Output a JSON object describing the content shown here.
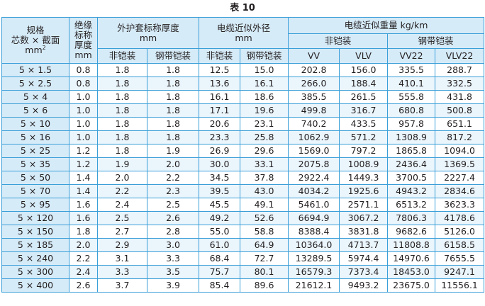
{
  "caption": "表 10",
  "headers": {
    "spec_line1": "规格",
    "spec_line2": "芯数 × 截面",
    "spec_line3": "mm",
    "spec_sup": "2",
    "insul_line1": "绝缘",
    "insul_line2": "标称",
    "insul_line3": "厚度",
    "insul_line4": "mm",
    "sheath_line1": "外护套标称厚度",
    "sheath_line2": "mm",
    "dia_line1": "电缆近似外径",
    "dia_line2": "mm",
    "weight": "电缆近似重量 kg/km",
    "non_armored": "非铠装",
    "steel_tape": "钢带铠装",
    "non_armored_w": "非铠装",
    "steel_tape_w": "钢带铠装",
    "vv": "VV",
    "vlv": "VLV",
    "vv22": "VV22",
    "vlv22": "VLV22"
  },
  "rows": [
    [
      "5 × 1.5",
      "0.8",
      "1.8",
      "1.8",
      "12.5",
      "15.0",
      "202.8",
      "156.0",
      "335.5",
      "288.7"
    ],
    [
      "5 × 2.5",
      "0.8",
      "1.8",
      "1.8",
      "13.6",
      "16.1",
      "266.0",
      "188.4",
      "410.1",
      "332.5"
    ],
    [
      "5 × 4",
      "1.0",
      "1.8",
      "1.8",
      "16.1",
      "18.6",
      "385.5",
      "261.5",
      "555.8",
      "431.8"
    ],
    [
      "5 × 6",
      "1.0",
      "1.8",
      "1.8",
      "17.1",
      "19.6",
      "499.8",
      "316.7",
      "680.8",
      "500.8"
    ],
    [
      "5 × 10",
      "1.0",
      "1.8",
      "1.8",
      "20.6",
      "23.1",
      "740.2",
      "433.5",
      "957.8",
      "651.1"
    ],
    [
      "5 × 16",
      "1.0",
      "1.8",
      "1.8",
      "23.3",
      "25.8",
      "1062.9",
      "571.2",
      "1308.9",
      "817.2"
    ],
    [
      "5 × 25",
      "1.2",
      "1.8",
      "1.9",
      "26.9",
      "29.6",
      "1569.0",
      "797.2",
      "1865.8",
      "1094.0"
    ],
    [
      "5 × 35",
      "1.2",
      "1.9",
      "2.0",
      "30.0",
      "33.1",
      "2075.8",
      "1008.9",
      "2436.4",
      "1369.5"
    ],
    [
      "5 × 50",
      "1.4",
      "2.0",
      "2.2",
      "34.5",
      "37.8",
      "2922.4",
      "1449.3",
      "3700.5",
      "2227.4"
    ],
    [
      "5 × 70",
      "1.4",
      "2.2",
      "2.3",
      "39.5",
      "43.0",
      "4034.2",
      "1925.6",
      "4943.2",
      "2834.6"
    ],
    [
      "5 × 95",
      "1.6",
      "2.4",
      "2.5",
      "45.5",
      "49.1",
      "5461.0",
      "2571.1",
      "6513.2",
      "3623.3"
    ],
    [
      "5 × 120",
      "1.6",
      "2.5",
      "2.6",
      "49.2",
      "52.6",
      "6694.9",
      "3067.2",
      "7806.3",
      "4178.6"
    ],
    [
      "5 × 150",
      "1.8",
      "2.7",
      "2.8",
      "55.0",
      "58.8",
      "8388.4",
      "3831.8",
      "9682.6",
      "5126.0"
    ],
    [
      "5 × 185",
      "2.0",
      "2.9",
      "3.0",
      "61.0",
      "64.9",
      "10364.0",
      "4713.7",
      "11808.8",
      "6158.5"
    ],
    [
      "5 × 240",
      "2.2",
      "3.1",
      "3.3",
      "68.4",
      "72.7",
      "13289.5",
      "5974.4",
      "14970.6",
      "7655.5"
    ],
    [
      "5 × 300",
      "2.4",
      "3.3",
      "3.5",
      "75.7",
      "80.1",
      "16579.3",
      "7373.4",
      "18453.0",
      "9247.1"
    ],
    [
      "5 × 400",
      "2.6",
      "3.7",
      "3.9",
      "85.4",
      "89.6",
      "21612.1",
      "9493.2",
      "23675.0",
      "11556.1"
    ]
  ]
}
